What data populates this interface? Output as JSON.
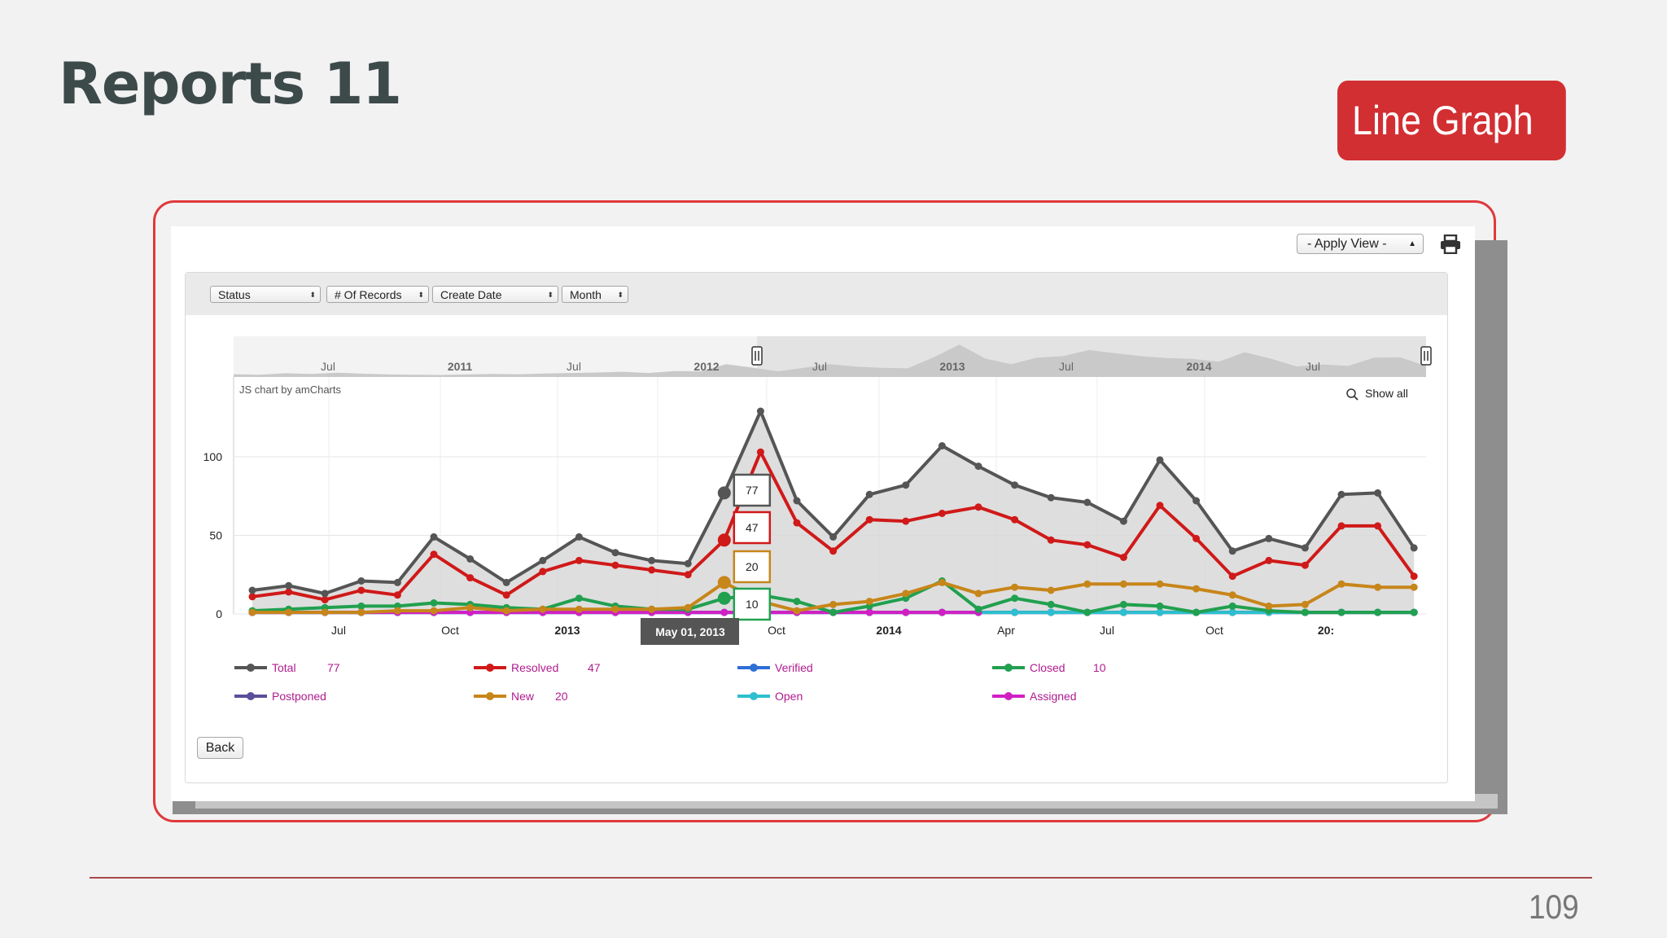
{
  "slide": {
    "title": "Reports 11",
    "badge": "Line Graph",
    "page_number": "109"
  },
  "toolbar": {
    "apply_view": "- Apply View -",
    "back": "Back"
  },
  "filters": [
    {
      "label": "Status"
    },
    {
      "label": "# Of Records"
    },
    {
      "label": "Create Date"
    },
    {
      "label": "Month"
    }
  ],
  "chart_ui": {
    "credit": "JS chart by amCharts",
    "show_all": "Show all",
    "tooltip_date": "May 01, 2013",
    "scrollbar_labels": [
      "Jul",
      "2011",
      "Jul",
      "2012",
      "Jul",
      "2013",
      "Jul",
      "2014",
      "Jul"
    ]
  },
  "colors": {
    "accent": "#d22f33",
    "frame": "#e0393c",
    "title": "#3d4a4a"
  },
  "chart_data": {
    "type": "line",
    "x_start": "2012-04",
    "x": [
      "2012-04",
      "2012-05",
      "2012-06",
      "2012-07",
      "2012-08",
      "2012-09",
      "2012-10",
      "2012-11",
      "2012-12",
      "2013-01",
      "2013-02",
      "2013-03",
      "2013-04",
      "2013-05",
      "2013-06",
      "2013-07",
      "2013-08",
      "2013-09",
      "2013-10",
      "2013-11",
      "2013-12",
      "2014-01",
      "2014-02",
      "2014-03",
      "2014-04",
      "2014-05",
      "2014-06",
      "2014-07",
      "2014-08",
      "2014-09",
      "2014-10",
      "2014-11",
      "2014-12",
      "2015-01"
    ],
    "x_tick_labels": [
      "Jul",
      "Oct",
      "2013",
      "Jul",
      "Oct",
      "2014",
      "Apr",
      "Jul",
      "Oct",
      "20:"
    ],
    "y_ticks": [
      0,
      50,
      100
    ],
    "ylim": [
      0,
      150
    ],
    "grid": true,
    "legend_position": "bottom",
    "series": [
      {
        "name": "Total",
        "color": "#555555",
        "legend_value": "77",
        "values": [
          15,
          18,
          13,
          21,
          20,
          49,
          35,
          20,
          34,
          49,
          39,
          34,
          32,
          77,
          129,
          72,
          49,
          76,
          82,
          107,
          94,
          82,
          74,
          71,
          59,
          98,
          72,
          40,
          48,
          42,
          76,
          77,
          42,
          null
        ]
      },
      {
        "name": "Resolved",
        "color": "#d01919",
        "legend_value": "47",
        "values": [
          11,
          14,
          9,
          15,
          12,
          38,
          23,
          12,
          27,
          34,
          31,
          28,
          25,
          47,
          103,
          58,
          40,
          60,
          59,
          64,
          68,
          60,
          47,
          44,
          36,
          69,
          48,
          24,
          34,
          31,
          56,
          56,
          24,
          null
        ]
      },
      {
        "name": "Verified",
        "color": "#2f6fd6",
        "legend_value": "",
        "values": [
          1,
          1,
          1,
          1,
          1,
          1,
          1,
          1,
          1,
          1,
          1,
          1,
          1,
          1,
          1,
          1,
          1,
          1,
          1,
          1,
          1,
          1,
          1,
          1,
          1,
          1,
          1,
          1,
          1,
          1,
          1,
          1,
          1,
          null
        ]
      },
      {
        "name": "Closed",
        "color": "#21a04f",
        "legend_value": "10",
        "values": [
          2,
          3,
          4,
          5,
          5,
          7,
          6,
          4,
          3,
          10,
          5,
          3,
          3,
          10,
          12,
          8,
          1,
          5,
          10,
          21,
          3,
          10,
          6,
          1,
          6,
          5,
          1,
          5,
          2,
          1,
          1,
          1,
          1,
          null
        ]
      },
      {
        "name": "Postponed",
        "color": "#5b4e9a",
        "legend_value": "",
        "values": [
          1,
          1,
          1,
          1,
          1,
          1,
          1,
          1,
          1,
          1,
          1,
          1,
          1,
          1,
          1,
          1,
          1,
          1,
          1,
          1,
          1,
          1,
          1,
          1,
          1,
          1,
          1,
          1,
          1,
          1,
          1,
          1,
          1,
          null
        ]
      },
      {
        "name": "New",
        "color": "#c7861a",
        "legend_value": "20",
        "values": [
          1,
          1,
          1,
          1,
          2,
          2,
          4,
          2,
          3,
          3,
          3,
          3,
          4,
          20,
          8,
          2,
          6,
          8,
          13,
          20,
          13,
          17,
          15,
          19,
          19,
          19,
          16,
          12,
          5,
          6,
          19,
          17,
          17,
          null
        ]
      },
      {
        "name": "Open",
        "color": "#2ebfcf",
        "legend_value": "",
        "values": [
          1,
          1,
          1,
          1,
          1,
          1,
          1,
          1,
          1,
          1,
          1,
          1,
          1,
          1,
          1,
          1,
          1,
          1,
          1,
          1,
          1,
          1,
          1,
          1,
          1,
          1,
          1,
          1,
          1,
          1,
          1,
          1,
          1,
          null
        ]
      },
      {
        "name": "Assigned",
        "color": "#d11fc4",
        "legend_value": "",
        "values": [
          1,
          1,
          1,
          1,
          1,
          1,
          1,
          1,
          1,
          1,
          1,
          1,
          1,
          1,
          1,
          1,
          1,
          1,
          1,
          1,
          1,
          null,
          null,
          null,
          null,
          null,
          null,
          null,
          null,
          null,
          null,
          null,
          null,
          null
        ]
      }
    ],
    "highlight_index": 13
  }
}
